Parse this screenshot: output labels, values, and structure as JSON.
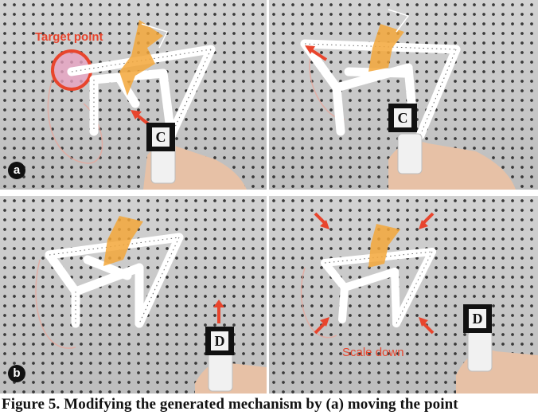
{
  "figure": {
    "panels": [
      {
        "label": "a",
        "annotation": "Target point",
        "marker": "C"
      },
      {
        "label": "",
        "annotation": "",
        "marker": "C"
      },
      {
        "label": "b",
        "annotation": "",
        "marker": "D"
      },
      {
        "label": "",
        "annotation": "Scale down",
        "marker": "D"
      }
    ],
    "colors": {
      "accent": "#e8452d",
      "linkage": "#ffffff",
      "board": "#c9c9c9"
    }
  },
  "caption": "Figure 5. Modifying the generated mechanism by (a) moving the point"
}
